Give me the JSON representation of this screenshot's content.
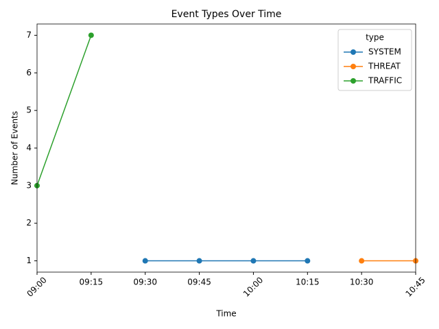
{
  "chart_data": {
    "type": "line",
    "title": "Event Types Over Time",
    "x_label": "Time",
    "y_label": "Number of Events",
    "categories": [
      "09:00",
      "09:15",
      "09:30",
      "09:45",
      "10:00",
      "10:15",
      "10:30",
      "10:45"
    ],
    "series": [
      {
        "name": "SYSTEM",
        "color": "#1f77b4",
        "values": [
          null,
          null,
          1,
          1,
          1,
          1,
          null,
          null
        ]
      },
      {
        "name": "THREAT",
        "color": "#ff7f0e",
        "values": [
          null,
          null,
          null,
          null,
          null,
          null,
          1,
          1
        ]
      },
      {
        "name": "TRAFFIC",
        "color": "#2ca02c",
        "values": [
          3,
          7,
          null,
          null,
          null,
          null,
          null,
          null
        ]
      }
    ],
    "ylim": [
      0.7,
      7.3
    ],
    "yticks": [
      1,
      2,
      3,
      4,
      5,
      6,
      7
    ],
    "legend_title": "type",
    "legend_position": "upper right",
    "grid": false
  }
}
